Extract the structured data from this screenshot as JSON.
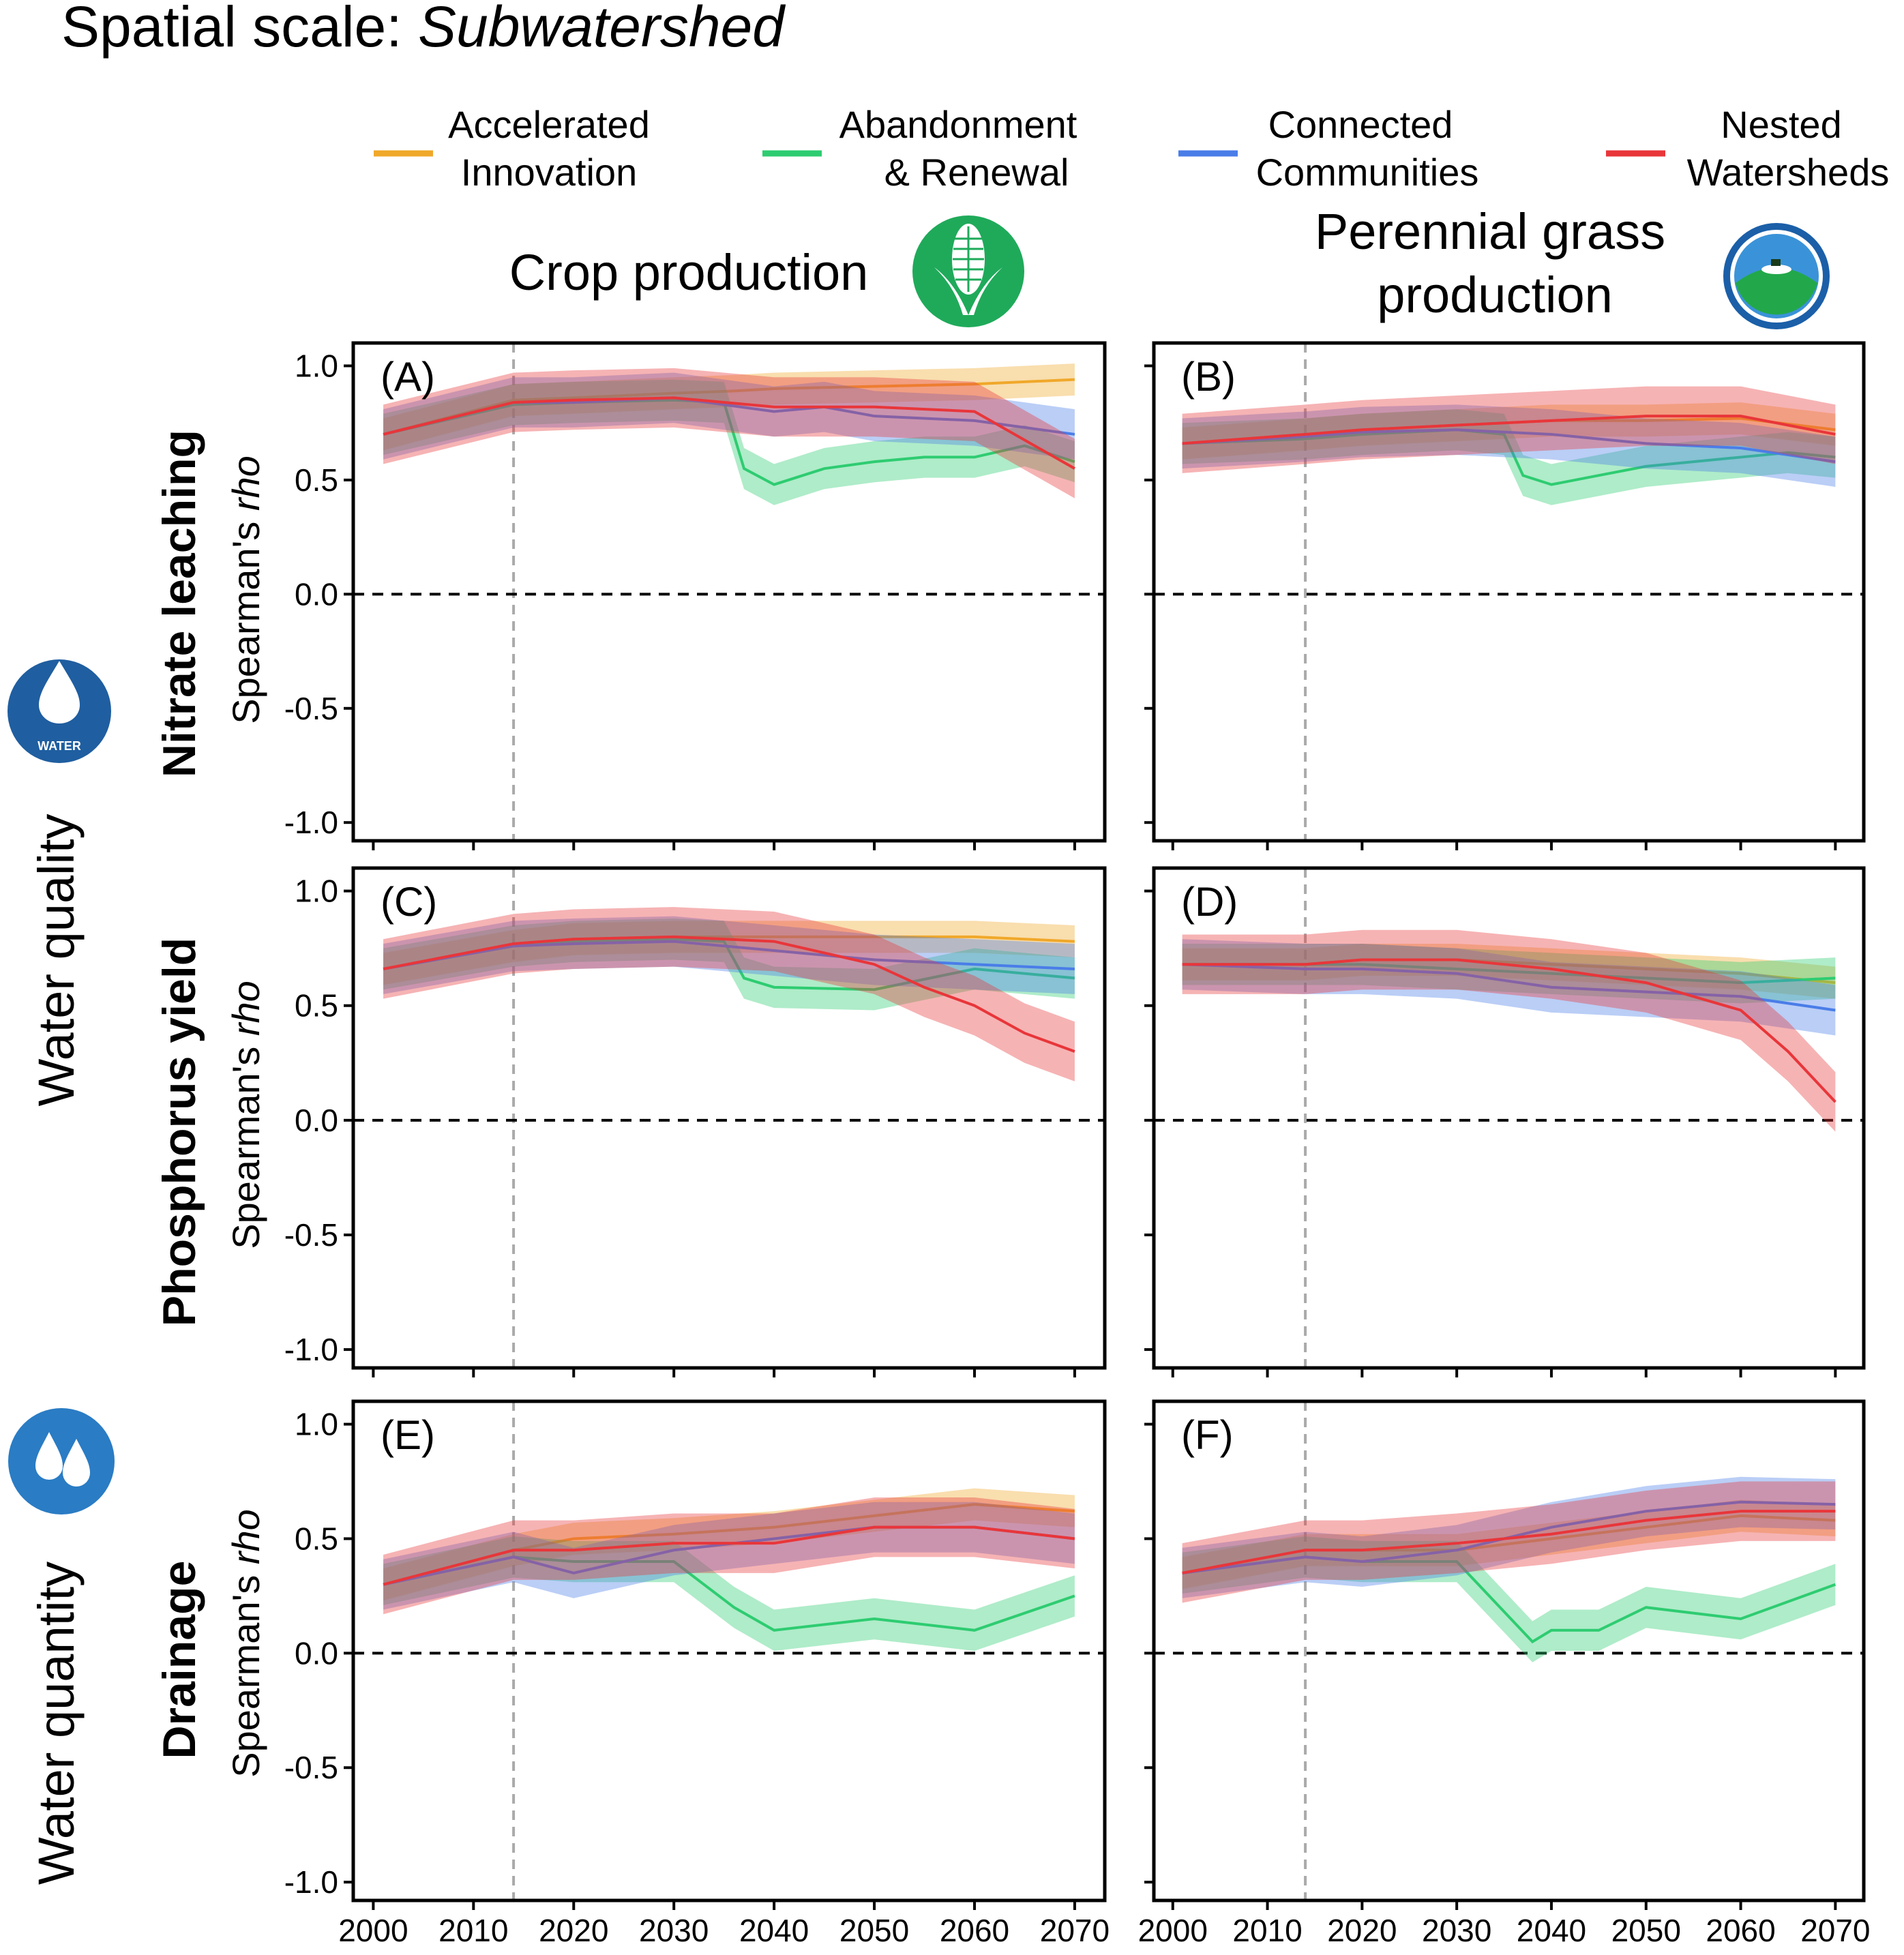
{
  "figure": {
    "title_prefix": "Spatial scale: ",
    "title_scale": "Subwatershed"
  },
  "legend": [
    {
      "line1": "Accelerated",
      "line2": "Innovation",
      "color": "#f0a82a"
    },
    {
      "line1": "Abandonment",
      "line2": "& Renewal",
      "color": "#2ecc71"
    },
    {
      "line1": "Connected",
      "line2": "Communities",
      "color": "#4a7de8"
    },
    {
      "line1": "Nested",
      "line2": "Watersheds",
      "color": "#e8363a"
    }
  ],
  "columns": {
    "left": {
      "title": "Crop production",
      "icon": "corn-icon"
    },
    "right": {
      "title_line1": "Perennial grass",
      "title_line2": "production",
      "icon": "grass-field-icon"
    }
  },
  "groups": {
    "water_quality": {
      "label": "Water quality",
      "icon": "water-drop-icon",
      "icon_text": "WATER"
    },
    "water_quantity": {
      "label": "Water quantity",
      "icon": "water-drops-icon"
    }
  },
  "rows": [
    {
      "label": "Nitrate leaching"
    },
    {
      "label": "Phosphorus yield"
    },
    {
      "label": "Drainage"
    }
  ],
  "ylabel": {
    "main": "Spearman's ",
    "italic": "rho"
  },
  "chart_data": {
    "type": "line",
    "description_axes": "Spearman's rho vs year, mean line with shaded uncertainty band per scenario",
    "x_ticks": [
      2000,
      2010,
      2020,
      2030,
      2040,
      2050,
      2060,
      2070
    ],
    "x_tick_labels": [
      "2000",
      "2010",
      "2020",
      "2030",
      "2040",
      "2050",
      "2060",
      "2070"
    ],
    "y_ticks": [
      1.0,
      0.5,
      0.0,
      -0.5,
      -1.0
    ],
    "y_tick_labels": [
      "1.0",
      "0.5",
      "0.0",
      "-0.5",
      "-1.0"
    ],
    "xlim": [
      1998,
      2073
    ],
    "ylim": [
      -1.08,
      1.1
    ],
    "baseline_year": 2014,
    "zero_reference": 0.0,
    "series_names": [
      "Accelerated Innovation",
      "Abandonment & Renewal",
      "Connected Communities",
      "Nested Watersheds"
    ],
    "panels": [
      {
        "letter": "(A)",
        "row": "Nitrate leaching",
        "column": "Crop production",
        "series": [
          {
            "name": "Accelerated Innovation",
            "x": [
              2001,
              2014,
              2020,
              2030,
              2036,
              2040,
              2050,
              2060,
              2070
            ],
            "y": [
              0.7,
              0.85,
              0.86,
              0.88,
              0.89,
              0.9,
              0.91,
              0.92,
              0.94
            ]
          },
          {
            "name": "Abandonment & Renewal",
            "x": [
              2001,
              2014,
              2020,
              2030,
              2035,
              2037,
              2040,
              2045,
              2050,
              2055,
              2060,
              2065,
              2070
            ],
            "y": [
              0.7,
              0.83,
              0.84,
              0.85,
              0.84,
              0.55,
              0.48,
              0.55,
              0.58,
              0.6,
              0.6,
              0.65,
              0.58
            ]
          },
          {
            "name": "Connected Communities",
            "x": [
              2001,
              2014,
              2020,
              2030,
              2040,
              2045,
              2050,
              2060,
              2070
            ],
            "y": [
              0.7,
              0.84,
              0.84,
              0.86,
              0.8,
              0.82,
              0.78,
              0.76,
              0.7
            ]
          },
          {
            "name": "Nested Watersheds",
            "x": [
              2001,
              2014,
              2020,
              2030,
              2040,
              2050,
              2060,
              2070
            ],
            "y": [
              0.7,
              0.84,
              0.85,
              0.86,
              0.82,
              0.82,
              0.8,
              0.55
            ]
          }
        ]
      },
      {
        "letter": "(B)",
        "row": "Nitrate leaching",
        "column": "Perennial grass production",
        "series": [
          {
            "name": "Accelerated Innovation",
            "x": [
              2001,
              2014,
              2020,
              2030,
              2040,
              2050,
              2060,
              2070
            ],
            "y": [
              0.66,
              0.7,
              0.72,
              0.74,
              0.76,
              0.76,
              0.77,
              0.72
            ]
          },
          {
            "name": "Abandonment & Renewal",
            "x": [
              2001,
              2014,
              2020,
              2030,
              2035,
              2037,
              2040,
              2045,
              2050,
              2055,
              2060,
              2065,
              2070
            ],
            "y": [
              0.66,
              0.68,
              0.7,
              0.72,
              0.7,
              0.52,
              0.48,
              0.52,
              0.56,
              0.58,
              0.6,
              0.62,
              0.6
            ]
          },
          {
            "name": "Connected Communities",
            "x": [
              2001,
              2014,
              2020,
              2030,
              2040,
              2050,
              2060,
              2070
            ],
            "y": [
              0.66,
              0.69,
              0.71,
              0.72,
              0.7,
              0.66,
              0.64,
              0.58
            ]
          },
          {
            "name": "Nested Watersheds",
            "x": [
              2001,
              2014,
              2020,
              2030,
              2040,
              2050,
              2060,
              2070
            ],
            "y": [
              0.66,
              0.7,
              0.72,
              0.74,
              0.76,
              0.78,
              0.78,
              0.7
            ]
          }
        ]
      },
      {
        "letter": "(C)",
        "row": "Phosphorus yield",
        "column": "Crop production",
        "series": [
          {
            "name": "Accelerated Innovation",
            "x": [
              2001,
              2014,
              2020,
              2030,
              2040,
              2050,
              2060,
              2070
            ],
            "y": [
              0.66,
              0.76,
              0.79,
              0.8,
              0.8,
              0.8,
              0.8,
              0.78
            ]
          },
          {
            "name": "Abandonment & Renewal",
            "x": [
              2001,
              2014,
              2020,
              2030,
              2035,
              2037,
              2040,
              2050,
              2060,
              2070
            ],
            "y": [
              0.66,
              0.76,
              0.78,
              0.79,
              0.78,
              0.62,
              0.58,
              0.57,
              0.66,
              0.62
            ]
          },
          {
            "name": "Connected Communities",
            "x": [
              2001,
              2014,
              2020,
              2030,
              2040,
              2050,
              2060,
              2070
            ],
            "y": [
              0.66,
              0.76,
              0.77,
              0.78,
              0.74,
              0.7,
              0.68,
              0.66
            ]
          },
          {
            "name": "Nested Watersheds",
            "x": [
              2001,
              2014,
              2020,
              2030,
              2040,
              2050,
              2055,
              2060,
              2065,
              2070
            ],
            "y": [
              0.66,
              0.77,
              0.79,
              0.8,
              0.78,
              0.68,
              0.58,
              0.5,
              0.38,
              0.3
            ]
          }
        ]
      },
      {
        "letter": "(D)",
        "row": "Phosphorus yield",
        "column": "Perennial grass production",
        "series": [
          {
            "name": "Accelerated Innovation",
            "x": [
              2001,
              2014,
              2020,
              2030,
              2040,
              2050,
              2060,
              2070
            ],
            "y": [
              0.68,
              0.68,
              0.7,
              0.7,
              0.68,
              0.66,
              0.64,
              0.6
            ]
          },
          {
            "name": "Abandonment & Renewal",
            "x": [
              2001,
              2014,
              2020,
              2030,
              2040,
              2050,
              2060,
              2070
            ],
            "y": [
              0.68,
              0.68,
              0.68,
              0.66,
              0.64,
              0.62,
              0.6,
              0.62
            ]
          },
          {
            "name": "Connected Communities",
            "x": [
              2001,
              2014,
              2020,
              2030,
              2040,
              2050,
              2060,
              2070
            ],
            "y": [
              0.68,
              0.66,
              0.66,
              0.64,
              0.58,
              0.56,
              0.54,
              0.48
            ]
          },
          {
            "name": "Nested Watersheds",
            "x": [
              2001,
              2014,
              2020,
              2030,
              2040,
              2050,
              2060,
              2065,
              2070
            ],
            "y": [
              0.68,
              0.68,
              0.7,
              0.7,
              0.66,
              0.6,
              0.48,
              0.3,
              0.08
            ]
          }
        ]
      },
      {
        "letter": "(E)",
        "row": "Drainage",
        "column": "Crop production",
        "series": [
          {
            "name": "Accelerated Innovation",
            "x": [
              2001,
              2014,
              2020,
              2030,
              2040,
              2050,
              2060,
              2070
            ],
            "y": [
              0.3,
              0.45,
              0.5,
              0.52,
              0.55,
              0.6,
              0.65,
              0.62
            ]
          },
          {
            "name": "Abandonment & Renewal",
            "x": [
              2001,
              2014,
              2020,
              2030,
              2036,
              2040,
              2050,
              2060,
              2070
            ],
            "y": [
              0.3,
              0.42,
              0.4,
              0.4,
              0.2,
              0.1,
              0.15,
              0.1,
              0.25
            ]
          },
          {
            "name": "Connected Communities",
            "x": [
              2001,
              2014,
              2020,
              2030,
              2040,
              2050,
              2060,
              2070
            ],
            "y": [
              0.3,
              0.42,
              0.35,
              0.45,
              0.5,
              0.55,
              0.55,
              0.5
            ]
          },
          {
            "name": "Nested Watersheds",
            "x": [
              2001,
              2014,
              2020,
              2030,
              2040,
              2050,
              2060,
              2070
            ],
            "y": [
              0.3,
              0.45,
              0.45,
              0.48,
              0.48,
              0.55,
              0.55,
              0.5
            ]
          }
        ]
      },
      {
        "letter": "(F)",
        "row": "Drainage",
        "column": "Perennial grass production",
        "series": [
          {
            "name": "Accelerated Innovation",
            "x": [
              2001,
              2014,
              2020,
              2030,
              2040,
              2050,
              2060,
              2070
            ],
            "y": [
              0.35,
              0.45,
              0.45,
              0.45,
              0.5,
              0.55,
              0.6,
              0.58
            ]
          },
          {
            "name": "Abandonment & Renewal",
            "x": [
              2001,
              2014,
              2020,
              2030,
              2038,
              2040,
              2045,
              2050,
              2060,
              2070
            ],
            "y": [
              0.35,
              0.42,
              0.4,
              0.4,
              0.05,
              0.1,
              0.1,
              0.2,
              0.15,
              0.3
            ]
          },
          {
            "name": "Connected Communities",
            "x": [
              2001,
              2014,
              2020,
              2030,
              2040,
              2050,
              2060,
              2070
            ],
            "y": [
              0.35,
              0.42,
              0.4,
              0.45,
              0.55,
              0.62,
              0.66,
              0.65
            ]
          },
          {
            "name": "Nested Watersheds",
            "x": [
              2001,
              2014,
              2020,
              2030,
              2040,
              2050,
              2060,
              2070
            ],
            "y": [
              0.35,
              0.45,
              0.45,
              0.48,
              0.52,
              0.58,
              0.62,
              0.62
            ]
          }
        ]
      }
    ]
  }
}
